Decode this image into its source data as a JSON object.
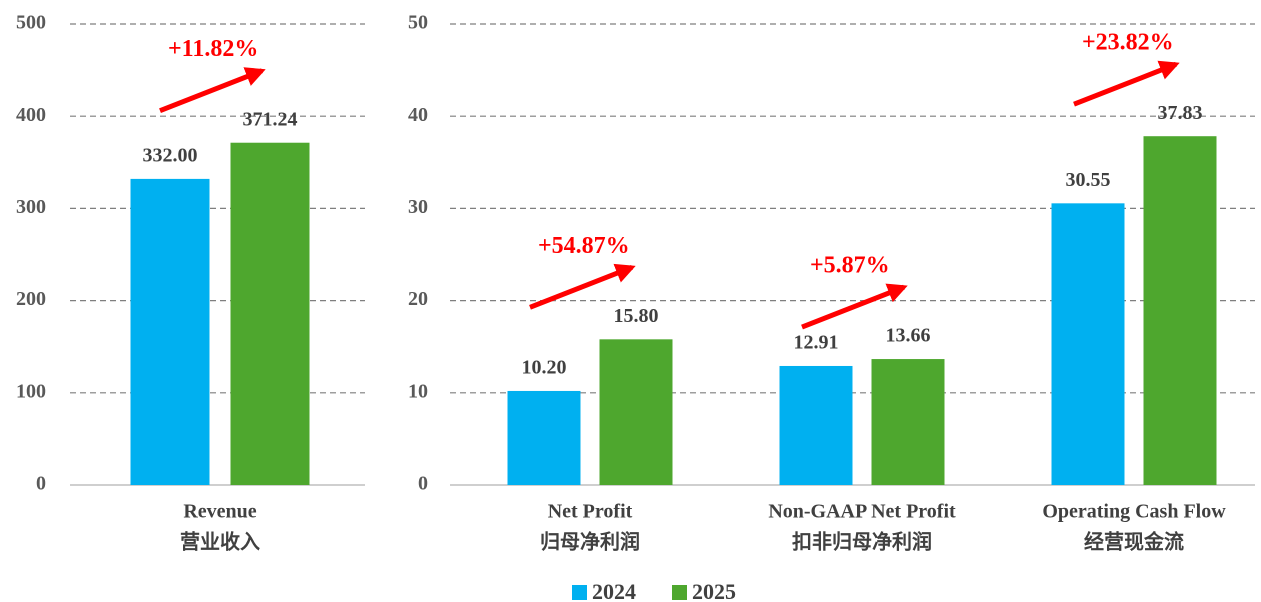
{
  "chart_data": [
    {
      "type": "bar",
      "categories": [
        [
          "Revenue",
          "营业收入"
        ]
      ],
      "series": [
        {
          "name": "2024",
          "color": "#00b0f0",
          "values": [
            332.0
          ],
          "value_labels": [
            "332.00"
          ]
        },
        {
          "name": "2025",
          "color": "#4ea72e",
          "values": [
            371.24
          ],
          "value_labels": [
            "371.24"
          ]
        }
      ],
      "annotations": [
        "+11.82%"
      ],
      "ylim": [
        0,
        500
      ],
      "yticks": [
        0,
        100,
        200,
        300,
        400,
        500
      ],
      "grid": true
    },
    {
      "type": "bar",
      "categories": [
        [
          "Net Profit",
          "归母净利润"
        ],
        [
          "Non-GAAP Net Profit",
          "扣非归母净利润"
        ],
        [
          "Operating Cash Flow",
          "经营现金流"
        ]
      ],
      "series": [
        {
          "name": "2024",
          "color": "#00b0f0",
          "values": [
            10.2,
            12.91,
            30.55
          ],
          "value_labels": [
            "10.20",
            "12.91",
            "30.55"
          ]
        },
        {
          "name": "2025",
          "color": "#4ea72e",
          "values": [
            15.8,
            13.66,
            37.83
          ],
          "value_labels": [
            "15.80",
            "13.66",
            "37.83"
          ]
        }
      ],
      "annotations": [
        "+54.87%",
        "+5.87%",
        "+23.82%"
      ],
      "ylim": [
        0,
        50
      ],
      "yticks": [
        0,
        10,
        20,
        30,
        40,
        50
      ],
      "grid": true
    }
  ]
}
